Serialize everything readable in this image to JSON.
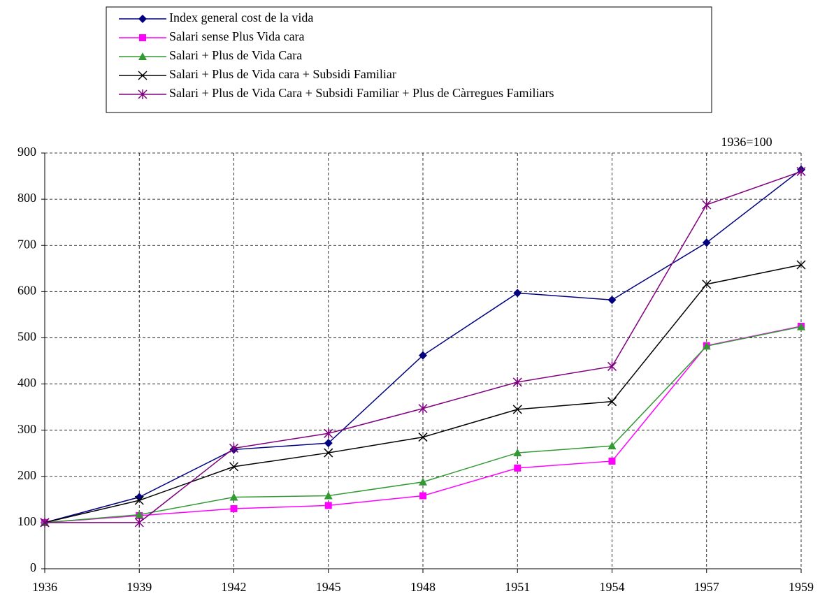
{
  "chart_data": {
    "type": "line",
    "annotation": "1936=100",
    "categories": [
      "1936",
      "1939",
      "1942",
      "1945",
      "1948",
      "1951",
      "1954",
      "1957",
      "1959"
    ],
    "series": [
      {
        "name": "Index general cost de la vida",
        "color": "#000080",
        "marker": "diamond",
        "values": [
          100,
          155,
          258,
          272,
          462,
          597,
          582,
          706,
          864
        ]
      },
      {
        "name": "Salari sense Plus Vida cara",
        "color": "#ff00ff",
        "marker": "square",
        "values": [
          100,
          115,
          130,
          137,
          158,
          218,
          233,
          483,
          525
        ]
      },
      {
        "name": "Salari + Plus de Vida Cara",
        "color": "#339933",
        "marker": "triangle",
        "values": [
          100,
          117,
          155,
          158,
          188,
          251,
          266,
          482,
          524
        ]
      },
      {
        "name": "Salari + Plus de Vida cara + Subsidi Familiar",
        "color": "#000000",
        "marker": "x",
        "values": [
          100,
          148,
          221,
          251,
          285,
          345,
          362,
          616,
          658
        ]
      },
      {
        "name": "Salari + Plus de Vida Cara + Subsidi Familiar + Plus de Càrregues Familiars",
        "color": "#800080",
        "marker": "star",
        "values": [
          100,
          100,
          261,
          293,
          347,
          404,
          438,
          788,
          860
        ]
      }
    ],
    "ylim": [
      0,
      900
    ],
    "yticks": [
      0,
      100,
      200,
      300,
      400,
      500,
      600,
      700,
      800,
      900
    ],
    "grid": true
  }
}
